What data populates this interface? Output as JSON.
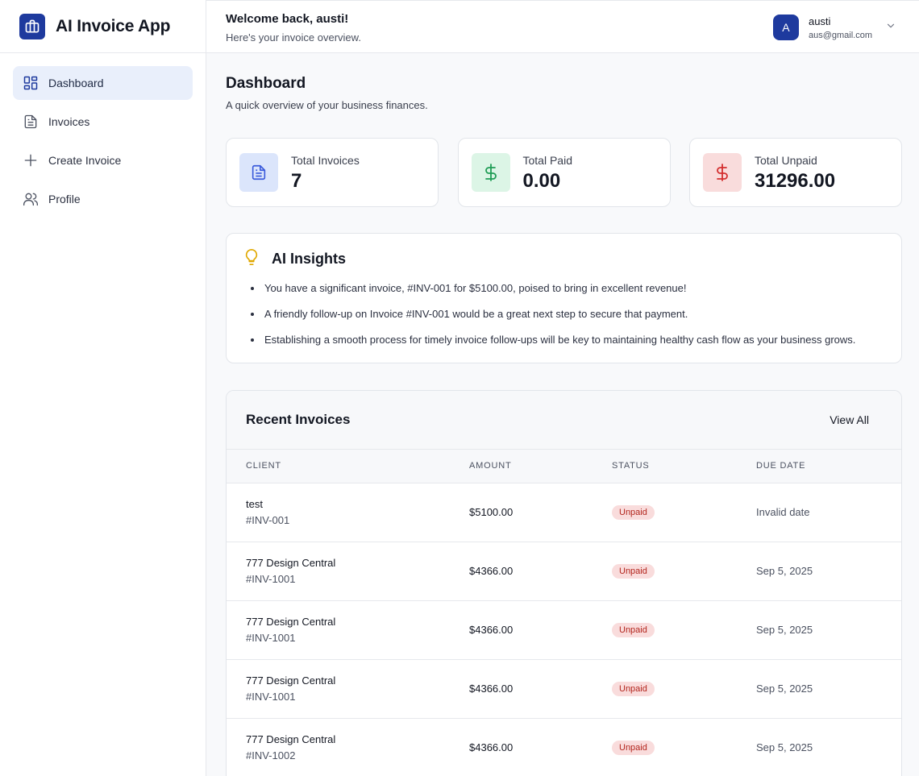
{
  "app": {
    "name": "AI Invoice App"
  },
  "sidebar": {
    "items": [
      {
        "label": "Dashboard",
        "icon": "dashboard-icon",
        "active": true
      },
      {
        "label": "Invoices",
        "icon": "file-icon",
        "active": false
      },
      {
        "label": "Create Invoice",
        "icon": "plus-icon",
        "active": false
      },
      {
        "label": "Profile",
        "icon": "users-icon",
        "active": false
      }
    ]
  },
  "header": {
    "welcome": "Welcome back, austi!",
    "subtitle": "Here's your invoice overview.",
    "user": {
      "initial": "A",
      "name": "austi",
      "email": "aus@gmail.com"
    }
  },
  "page": {
    "title": "Dashboard",
    "subtitle": "A quick overview of your business finances."
  },
  "stats": [
    {
      "label": "Total Invoices",
      "value": "7",
      "icon": "document-icon",
      "color": "#3b5bdb"
    },
    {
      "label": "Total Paid",
      "value": "0.00",
      "icon": "dollar-icon",
      "color": "#1f9d55"
    },
    {
      "label": "Total Unpaid",
      "value": "31296.00",
      "icon": "dollar-icon",
      "color": "#d32f2f"
    }
  ],
  "insights": {
    "title": "AI Insights",
    "items": [
      "You have a significant invoice, #INV-001 for $5100.00, poised to bring in excellent revenue!",
      "A friendly follow-up on Invoice #INV-001 would be a great next step to secure that payment.",
      "Establishing a smooth process for timely invoice follow-ups will be key to maintaining healthy cash flow as your business grows."
    ]
  },
  "recent": {
    "title": "Recent Invoices",
    "view_all": "View All",
    "columns": [
      "CLIENT",
      "AMOUNT",
      "STATUS",
      "DUE DATE"
    ],
    "rows": [
      {
        "client": "test",
        "invoice": "#INV-001",
        "amount": "$5100.00",
        "status": "Unpaid",
        "due": "Invalid date"
      },
      {
        "client": "777 Design Central",
        "invoice": "#INV-1001",
        "amount": "$4366.00",
        "status": "Unpaid",
        "due": "Sep 5, 2025"
      },
      {
        "client": "777 Design Central",
        "invoice": "#INV-1001",
        "amount": "$4366.00",
        "status": "Unpaid",
        "due": "Sep 5, 2025"
      },
      {
        "client": "777 Design Central",
        "invoice": "#INV-1001",
        "amount": "$4366.00",
        "status": "Unpaid",
        "due": "Sep 5, 2025"
      },
      {
        "client": "777 Design Central",
        "invoice": "#INV-1002",
        "amount": "$4366.00",
        "status": "Unpaid",
        "due": "Sep 5, 2025"
      }
    ]
  }
}
